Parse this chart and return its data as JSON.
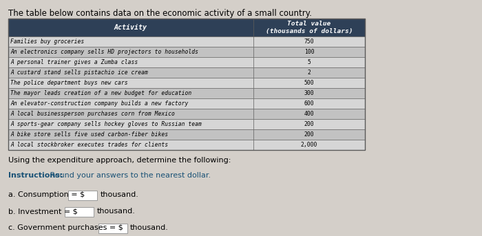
{
  "title": "The table below contains data on the economic activity of a small country.",
  "header_activity": "Activity",
  "header_value": "Total value\n(thousands of dollars)",
  "rows": [
    [
      "Families buy groceries",
      "750"
    ],
    [
      "An electronics company sells HD projectors to households",
      "100"
    ],
    [
      "A personal trainer gives a Zumba class",
      "5"
    ],
    [
      "A custard stand sells pistachio ice cream",
      "2"
    ],
    [
      "The police department buys new cars",
      "500"
    ],
    [
      "The mayor leads creation of a new budget for education",
      "300"
    ],
    [
      "An elevator-construction company builds a new factory",
      "600"
    ],
    [
      "A local businessperson purchases corn from Mexico",
      "400"
    ],
    [
      "A sports-gear company sells hockey gloves to Russian team",
      "200"
    ],
    [
      "A bike store sells five used carbon-fiber bikes",
      "200"
    ],
    [
      "A local stockbroker executes trades for clients",
      "2,000"
    ]
  ],
  "below_text1": "Using the expenditure approach, determine the following:",
  "instructions_bold": "Instructions:",
  "instructions_rest": " Round your answers to the nearest dollar.",
  "question_a": "a. Consumption = $",
  "question_b": "b. Investment = $",
  "question_c": "c. Government purchases = $",
  "thousand": "thousand.",
  "header_bg": "#2e4057",
  "header_text_color": "#ffffff",
  "row_bg_light": "#d6d6d6",
  "row_bg_dark": "#c2c2c2",
  "table_border": "#5a5a5a",
  "page_bg": "#d4cfc9",
  "instructions_color": "#1a5276",
  "input_box_bg": "#e8e4de"
}
